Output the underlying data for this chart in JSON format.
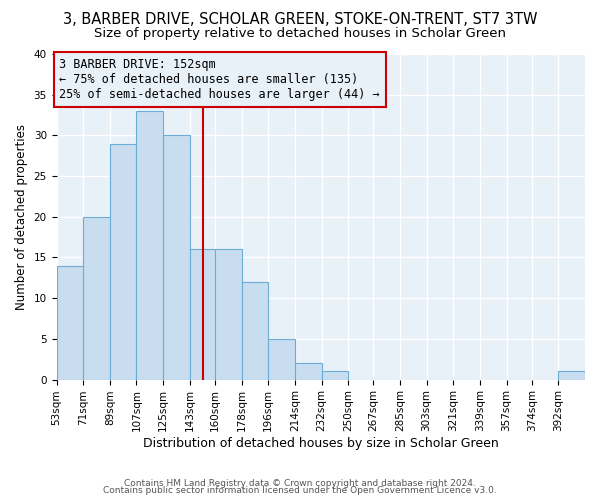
{
  "title": "3, BARBER DRIVE, SCHOLAR GREEN, STOKE-ON-TRENT, ST7 3TW",
  "subtitle": "Size of property relative to detached houses in Scholar Green",
  "xlabel": "Distribution of detached houses by size in Scholar Green",
  "ylabel": "Number of detached properties",
  "bar_edges": [
    53,
    71,
    89,
    107,
    125,
    143,
    160,
    178,
    196,
    214,
    232,
    250,
    267,
    285,
    303,
    321,
    339,
    357,
    374,
    392,
    410
  ],
  "bar_heights": [
    14,
    20,
    29,
    33,
    30,
    16,
    16,
    12,
    5,
    2,
    1,
    0,
    0,
    0,
    0,
    0,
    0,
    0,
    0,
    1
  ],
  "bar_color": "#c9ddf0",
  "bar_edgecolor": "#6aaed6",
  "vline_x": 152,
  "vline_color": "#cc0000",
  "annotation_text": "3 BARBER DRIVE: 152sqm\n← 75% of detached houses are smaller (135)\n25% of semi-detached houses are larger (44) →",
  "annotation_box_edgecolor": "#cc0000",
  "annotation_fontsize": 8.5,
  "title_fontsize": 10.5,
  "subtitle_fontsize": 9.5,
  "xlabel_fontsize": 9,
  "ylabel_fontsize": 8.5,
  "tick_fontsize": 7.5,
  "ylim": [
    0,
    40
  ],
  "yticks": [
    0,
    5,
    10,
    15,
    20,
    25,
    30,
    35,
    40
  ],
  "background_color": "#ffffff",
  "plot_bg_color": "#e8f0f8",
  "grid_color": "#ffffff",
  "footer_line1": "Contains HM Land Registry data © Crown copyright and database right 2024.",
  "footer_line2": "Contains public sector information licensed under the Open Government Licence v3.0."
}
